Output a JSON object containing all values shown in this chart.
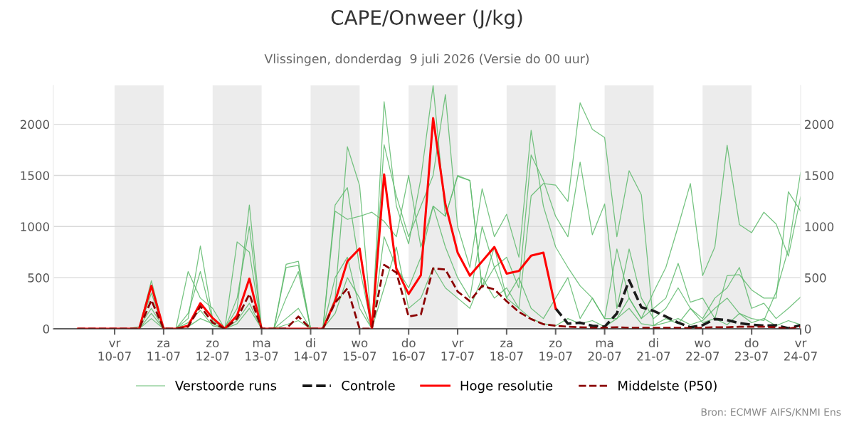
{
  "chart_data": {
    "type": "line",
    "title": "CAPE/Onweer (J/kg)",
    "subtitle": "Vlissingen, donderdag  9 juli 2026 (Versie do 00 uur)",
    "annotations": [
      "Bron: ECMWF AIFS/KNMI Ens"
    ],
    "x": [
      "2026-07-09T06:00",
      "2026-07-09T12:00",
      "2026-07-09T18:00",
      "2026-07-10T00:00",
      "2026-07-10T06:00",
      "2026-07-10T12:00",
      "2026-07-10T18:00",
      "2026-07-11T00:00",
      "2026-07-11T06:00",
      "2026-07-11T12:00",
      "2026-07-11T18:00",
      "2026-07-12T00:00",
      "2026-07-12T06:00",
      "2026-07-12T12:00",
      "2026-07-12T18:00",
      "2026-07-13T00:00",
      "2026-07-13T06:00",
      "2026-07-13T12:00",
      "2026-07-13T18:00",
      "2026-07-14T00:00",
      "2026-07-14T06:00",
      "2026-07-14T12:00",
      "2026-07-14T18:00",
      "2026-07-15T00:00",
      "2026-07-15T06:00",
      "2026-07-15T12:00",
      "2026-07-15T18:00",
      "2026-07-16T00:00",
      "2026-07-16T06:00",
      "2026-07-16T12:00",
      "2026-07-16T18:00",
      "2026-07-17T00:00",
      "2026-07-17T06:00",
      "2026-07-17T12:00",
      "2026-07-17T18:00",
      "2026-07-18T00:00",
      "2026-07-18T06:00",
      "2026-07-18T12:00",
      "2026-07-18T18:00",
      "2026-07-19T00:00",
      "2026-07-19T06:00",
      "2026-07-19T12:00",
      "2026-07-19T18:00",
      "2026-07-20T00:00",
      "2026-07-20T06:00",
      "2026-07-20T12:00",
      "2026-07-20T18:00",
      "2026-07-21T00:00",
      "2026-07-21T06:00",
      "2026-07-21T12:00",
      "2026-07-21T18:00",
      "2026-07-22T00:00",
      "2026-07-22T06:00",
      "2026-07-22T12:00",
      "2026-07-22T18:00",
      "2026-07-23T00:00",
      "2026-07-23T06:00",
      "2026-07-23T12:00",
      "2026-07-23T18:00",
      "2026-07-24T00:00"
    ],
    "series": [
      {
        "name": "Verstoorde runs",
        "color": "#5cb86a",
        "line_style": "solid",
        "values": [
          null,
          null,
          null,
          0,
          0,
          0,
          150,
          0,
          0,
          60,
          180,
          30,
          0,
          80,
          250,
          0,
          0,
          40,
          80,
          0,
          0,
          150,
          500,
          300,
          0,
          400,
          800,
          200,
          300,
          600,
          400,
          300,
          200,
          500,
          300,
          400,
          200,
          1300,
          1420,
          1405,
          1245,
          2210,
          1950,
          1870,
          900,
          1545,
          1310,
          35,
          100,
          50,
          200,
          60,
          100,
          40,
          150,
          60,
          100,
          30,
          80,
          40
        ]
      },
      {
        "color": "#5cb86a",
        "line_style": "solid",
        "values": [
          null,
          null,
          null,
          0,
          0,
          20,
          200,
          10,
          0,
          150,
          560,
          80,
          0,
          300,
          1000,
          0,
          0,
          600,
          620,
          0,
          0,
          1150,
          1070,
          1100,
          1140,
          1050,
          900,
          1500,
          800,
          1200,
          1100,
          1500,
          1450,
          400,
          800,
          300,
          500,
          200,
          100,
          300,
          500,
          100,
          300,
          100,
          100,
          300,
          100,
          360,
          600,
          1000,
          1420,
          520,
          800,
          1795,
          1020,
          940,
          1140,
          1025,
          710,
          1290
        ]
      },
      {
        "color": "#5cb86a",
        "line_style": "solid",
        "values": [
          null,
          null,
          null,
          0,
          0,
          0,
          470,
          0,
          0,
          100,
          810,
          100,
          0,
          200,
          1210,
          0,
          0,
          300,
          560,
          0,
          0,
          300,
          1780,
          1400,
          0,
          2220,
          1200,
          830,
          1470,
          2380,
          1100,
          1490,
          1450,
          400,
          600,
          300,
          200,
          100,
          50,
          30,
          100,
          50,
          80,
          20,
          100,
          200,
          50,
          30,
          60,
          100,
          40,
          80,
          200,
          300,
          150,
          100,
          80,
          360,
          780,
          1530
        ]
      },
      {
        "color": "#5cb86a",
        "line_style": "solid",
        "values": [
          null,
          null,
          null,
          0,
          0,
          0,
          350,
          0,
          0,
          560,
          300,
          200,
          0,
          850,
          750,
          0,
          0,
          630,
          660,
          0,
          0,
          1210,
          1380,
          600,
          0,
          1800,
          1300,
          900,
          1200,
          1500,
          2290,
          1000,
          600,
          1370,
          900,
          1120,
          700,
          1940,
          1200,
          800,
          600,
          420,
          300,
          100,
          780,
          300,
          100,
          200,
          300,
          640,
          260,
          300,
          100,
          520,
          530,
          380,
          300,
          300,
          1340,
          1150
        ]
      },
      {
        "color": "#5cb86a",
        "line_style": "solid",
        "values": [
          null,
          null,
          null,
          0,
          0,
          0,
          100,
          0,
          0,
          20,
          100,
          50,
          0,
          50,
          200,
          0,
          0,
          100,
          200,
          0,
          0,
          500,
          700,
          200,
          0,
          900,
          600,
          400,
          700,
          1200,
          800,
          500,
          300,
          1000,
          600,
          700,
          400,
          1700,
          1450,
          1100,
          900,
          1630,
          920,
          1220,
          200,
          780,
          300,
          100,
          200,
          400,
          200,
          100,
          300,
          400,
          600,
          200,
          250,
          100,
          200,
          310
        ]
      },
      {
        "name": "Controle",
        "color": "#1a1a1a",
        "line_style": "dashed",
        "values": [
          null,
          null,
          null,
          null,
          null,
          null,
          null,
          null,
          null,
          null,
          null,
          null,
          null,
          null,
          null,
          null,
          null,
          null,
          null,
          null,
          null,
          null,
          null,
          null,
          null,
          null,
          null,
          null,
          null,
          null,
          null,
          null,
          null,
          null,
          null,
          null,
          null,
          null,
          null,
          200,
          50,
          60,
          30,
          20,
          150,
          475,
          210,
          175,
          120,
          60,
          15,
          35,
          95,
          85,
          55,
          40,
          30,
          35,
          5,
          35
        ]
      },
      {
        "name": "Hoge resolutie",
        "color": "#ff0000",
        "line_style": "solid",
        "values": [
          0,
          0,
          0,
          0,
          0,
          0,
          420,
          0,
          0,
          30,
          250,
          105,
          0,
          130,
          490,
          0,
          0,
          0,
          0,
          0,
          0,
          270,
          660,
          785,
          0,
          1510,
          585,
          340,
          525,
          2060,
          1220,
          745,
          520,
          660,
          800,
          540,
          565,
          715,
          745,
          200,
          null,
          null,
          null,
          null,
          null,
          null,
          null,
          null,
          null,
          null,
          null,
          null,
          null,
          null,
          null,
          null,
          null,
          null,
          null,
          null
        ]
      },
      {
        "name": "Middelste (P50)",
        "color": "#8b0000",
        "line_style": "dashed",
        "values": [
          0,
          0,
          0,
          0,
          0,
          0,
          280,
          0,
          0,
          20,
          220,
          60,
          0,
          100,
          340,
          0,
          0,
          0,
          120,
          0,
          0,
          255,
          395,
          0,
          0,
          625,
          550,
          120,
          140,
          590,
          580,
          365,
          270,
          420,
          385,
          270,
          165,
          95,
          45,
          30,
          20,
          15,
          10,
          10,
          15,
          10,
          10,
          10,
          10,
          10,
          5,
          10,
          15,
          15,
          20,
          20,
          20,
          15,
          0,
          20
        ]
      }
    ],
    "xlim": [
      "2026-07-08T18:00",
      "2026-07-24T00:00"
    ],
    "xticks": [
      {
        "value": "2026-07-10",
        "label": "vr\n10-07"
      },
      {
        "value": "2026-07-11",
        "label": "za\n11-07"
      },
      {
        "value": "2026-07-12",
        "label": "zo\n12-07"
      },
      {
        "value": "2026-07-13",
        "label": "ma\n13-07"
      },
      {
        "value": "2026-07-14",
        "label": "di\n14-07"
      },
      {
        "value": "2026-07-15",
        "label": "wo\n15-07"
      },
      {
        "value": "2026-07-16",
        "label": "do\n16-07"
      },
      {
        "value": "2026-07-17",
        "label": "vr\n17-07"
      },
      {
        "value": "2026-07-18",
        "label": "za\n18-07"
      },
      {
        "value": "2026-07-19",
        "label": "zo\n19-07"
      },
      {
        "value": "2026-07-20",
        "label": "ma\n20-07"
      },
      {
        "value": "2026-07-21",
        "label": "di\n21-07"
      },
      {
        "value": "2026-07-22",
        "label": "wo\n22-07"
      },
      {
        "value": "2026-07-23",
        "label": "do\n23-07"
      },
      {
        "value": "2026-07-24",
        "label": "vr\n24-07"
      }
    ],
    "ylim": [
      0,
      2380
    ],
    "yticks": [
      0,
      500,
      1000,
      1500,
      2000
    ],
    "y2lim": [
      0,
      2380
    ],
    "y2ticks": [
      0,
      500,
      1000,
      1500,
      2000
    ],
    "bands": [
      {
        "axis": "x",
        "from": "2026-07-10",
        "to": "2026-07-11",
        "color": "#ececec"
      },
      {
        "axis": "x",
        "from": "2026-07-12",
        "to": "2026-07-13",
        "color": "#ececec"
      },
      {
        "axis": "x",
        "from": "2026-07-14",
        "to": "2026-07-15",
        "color": "#ececec"
      },
      {
        "axis": "x",
        "from": "2026-07-16",
        "to": "2026-07-17",
        "color": "#ececec"
      },
      {
        "axis": "x",
        "from": "2026-07-18",
        "to": "2026-07-19",
        "color": "#ececec"
      },
      {
        "axis": "x",
        "from": "2026-07-20",
        "to": "2026-07-21",
        "color": "#ececec"
      },
      {
        "axis": "x",
        "from": "2026-07-22",
        "to": "2026-07-23",
        "color": "#ececec"
      }
    ],
    "grid": "y",
    "legend": "bottom",
    "marker": "none"
  }
}
